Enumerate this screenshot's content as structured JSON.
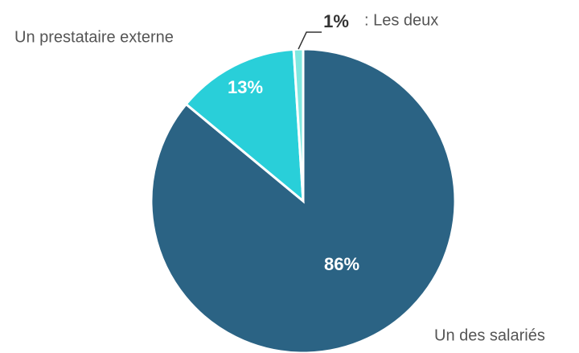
{
  "chart_data": {
    "type": "pie",
    "categories": [
      "Un des salariés",
      "Un prestataire externe",
      ": Les deux"
    ],
    "values": [
      86,
      13,
      1
    ],
    "value_labels": [
      "86%",
      "13%",
      "1%"
    ],
    "colors": [
      "#2b6384",
      "#29cfd9",
      "#7fe8e0"
    ]
  }
}
